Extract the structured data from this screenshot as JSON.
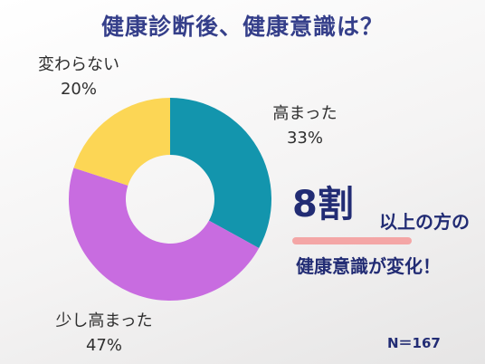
{
  "title": "健康診断後、健康意識は？",
  "chart_data": {
    "type": "pie",
    "donut": true,
    "title": "健康診断後、健康意識は？",
    "slices": [
      {
        "label": "高まった",
        "value": 33,
        "display": "33%",
        "color": "#1395ad"
      },
      {
        "label": "少し高まった",
        "value": 47,
        "display": "47%",
        "color": "#c86ce0"
      },
      {
        "label": "変わらない",
        "value": 20,
        "display": "20%",
        "color": "#fcd655"
      }
    ]
  },
  "callout": {
    "highlight": "8割",
    "line1": "以上の方の",
    "line2": "健康意識が変化！",
    "underline_color": "#f4a6a6"
  },
  "sample": "N＝167"
}
